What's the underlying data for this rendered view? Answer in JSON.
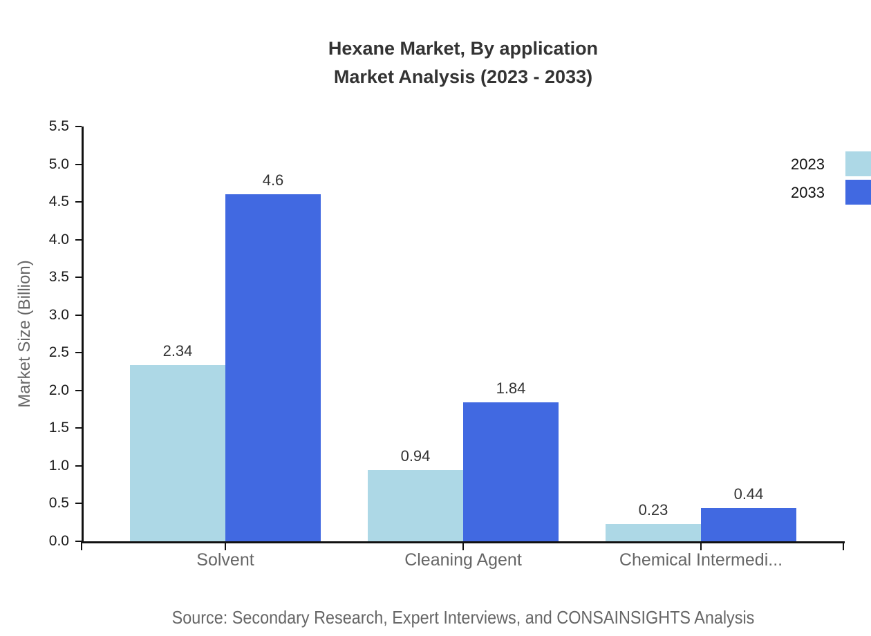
{
  "title": {
    "line1": "Hexane Market, By application",
    "line2": "Market Analysis (2023 - 2033)"
  },
  "source_text": "Source: Secondary Research, Expert Interviews, and CONSAINSIGHTS Analysis",
  "chart_data": {
    "type": "bar",
    "title": "Hexane Market, By application Market Analysis (2023 - 2033)",
    "categories": [
      "Solvent",
      "Cleaning Agent",
      "Chemical Intermedi..."
    ],
    "series": [
      {
        "name": "2023",
        "color": "#ADD8E6",
        "values": [
          2.34,
          0.94,
          0.23
        ]
      },
      {
        "name": "2033",
        "color": "#4169E1",
        "values": [
          4.6,
          1.84,
          0.44
        ]
      }
    ],
    "xlabel": "",
    "ylabel": "Market Size (Billion)",
    "ylim": [
      0,
      5.5
    ],
    "yticks": [
      "0.0",
      "0.5",
      "1.0",
      "1.5",
      "2.0",
      "2.5",
      "3.0",
      "3.5",
      "4.0",
      "4.5",
      "5.0",
      "5.5"
    ],
    "grid": false,
    "value_labels_shown": true,
    "legend_position": "top-right",
    "axis_color": "#111111",
    "text_colors": {
      "title": "#333333",
      "tick_labels": "#1a1a1a",
      "category_labels": "#666666",
      "value_labels": "#333333",
      "source": "#666666"
    }
  }
}
